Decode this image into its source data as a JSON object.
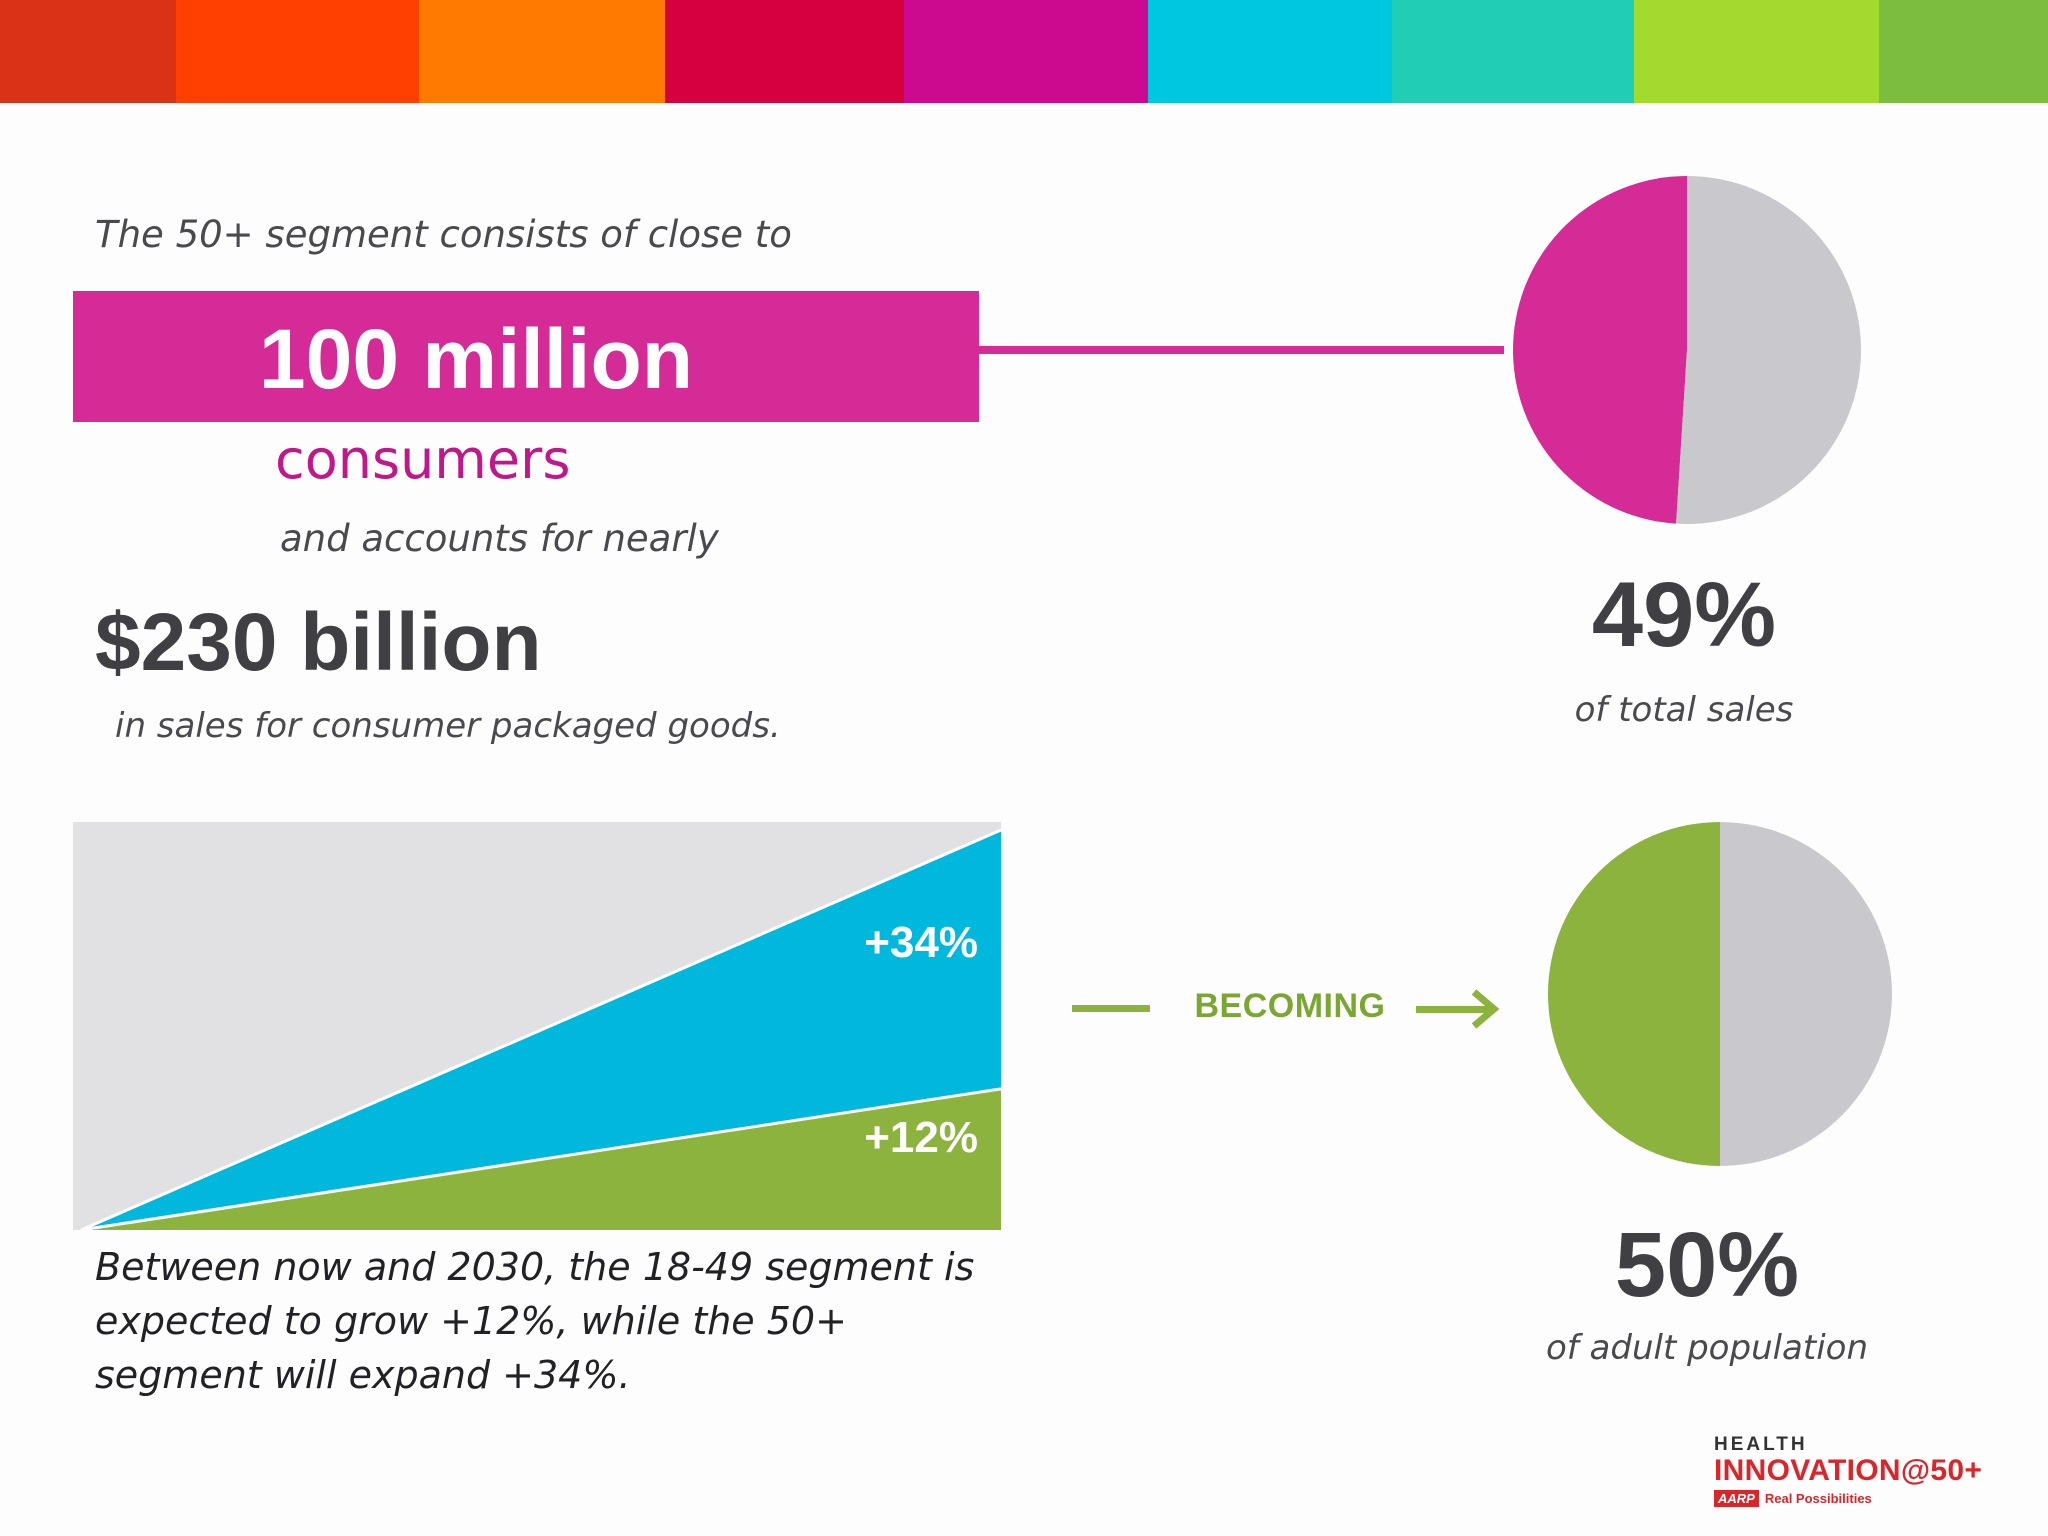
{
  "colors": {
    "stripes": [
      "#d93317",
      "#ff4000",
      "#ff7b00",
      "#d6003f",
      "#cc0a8f",
      "#00c7e0",
      "#22cdb5",
      "#a2db2e",
      "#7cbd40"
    ],
    "magenta": "#d42b96",
    "gray": "#c9c8cc",
    "chart_background": "#e1e0e3",
    "cyan": "#00b8dc",
    "green": "#8db33f"
  },
  "top_text": {
    "intro": "The 50+ segment consists of close to",
    "big_number": "100 million",
    "consumers": "consumers",
    "accounts": "and accounts for nearly",
    "sales_amount": "$230 billion",
    "sales_description": "in sales for consumer packaged goods."
  },
  "growth": {
    "caption": "Between now and 2030, the 18-49 segment is expected to grow +12%, while the 50+ segment will expand +34%."
  },
  "stats": {
    "sales_share": {
      "value": "49%",
      "label": "of total sales"
    },
    "population_share": {
      "value": "50%",
      "label": "of adult population"
    }
  },
  "connector": {
    "label": "BECOMING"
  },
  "logo": {
    "health": "HEALTH",
    "main": "INNOVATION@50+",
    "aarp": "AARP",
    "tagline": "Real Possibilities"
  },
  "chart_data": [
    {
      "type": "area",
      "series": [
        {
          "name": "+12%",
          "values": [
            0,
            12
          ]
        },
        {
          "name": "+34%",
          "values": [
            0,
            34
          ]
        }
      ],
      "annotations": [
        "+34%",
        "+12%"
      ]
    },
    {
      "type": "pie",
      "slices": [
        {
          "value": 49,
          "color": "#d42b96"
        },
        {
          "value": 51,
          "color": "#c9c8cc"
        }
      ]
    },
    {
      "type": "pie",
      "slices": [
        {
          "value": 50,
          "color": "#8db33f"
        },
        {
          "value": 50,
          "color": "#c9c8cc"
        }
      ]
    }
  ]
}
